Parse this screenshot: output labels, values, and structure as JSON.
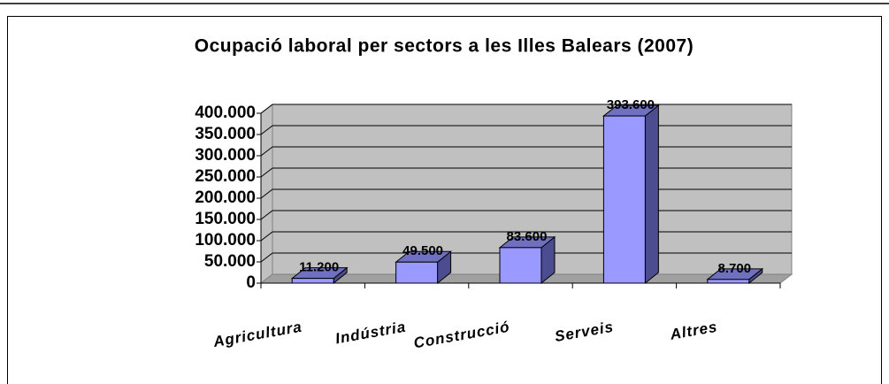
{
  "chart_data": {
    "type": "bar3d",
    "title": "Ocupació laboral per sectors a les Illes Balears (2007)",
    "categories": [
      "Agricultura",
      "Indústria",
      "Construcció",
      "Serveis",
      "Altres"
    ],
    "values": [
      11200,
      49500,
      83600,
      393600,
      8700
    ],
    "value_labels": [
      "11.200",
      "49.500",
      "83.600",
      "393.600",
      "8.700"
    ],
    "color": "#9999ff",
    "ylim": [
      0,
      400000
    ],
    "yticks": [
      0,
      {
        "value": 50000,
        "label": "50.000"
      },
      {
        "value": 100000,
        "label": "100.000"
      },
      {
        "value": 150000,
        "label": "150.000"
      },
      {
        "value": 200000,
        "label": "200.000"
      },
      {
        "value": 250000,
        "label": "250.000"
      },
      {
        "value": 300000,
        "label": "300.000"
      },
      {
        "value": 350000,
        "label": "350.000"
      },
      {
        "value": 400000,
        "label": "400.000"
      }
    ],
    "grid": true
  }
}
